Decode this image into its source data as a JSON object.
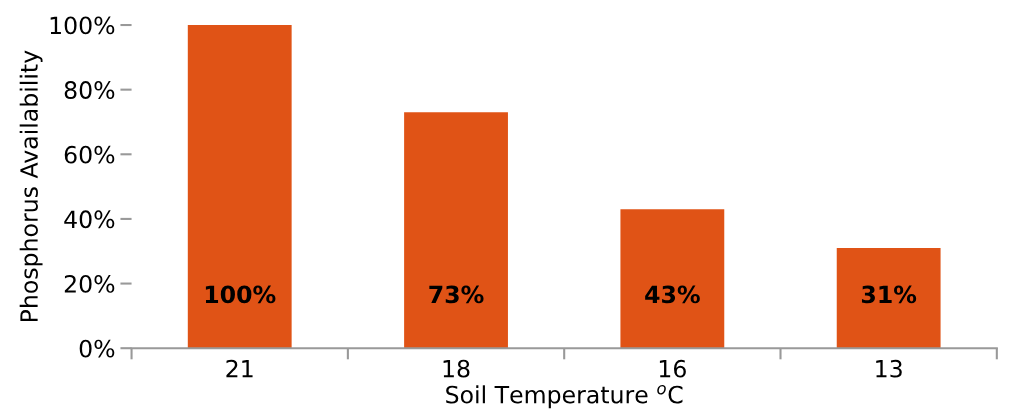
{
  "chart_data": {
    "type": "bar",
    "xlabel": "Soil Temperature $^{o}$C",
    "ylabel": "Phosphorus Availability",
    "categories": [
      "21",
      "18",
      "16",
      "13"
    ],
    "values": [
      100,
      73,
      43,
      31
    ],
    "color": "#e05316",
    "value_labels": [
      "100%",
      "73%",
      "43%",
      "31%"
    ],
    "ylim": [
      0,
      100
    ],
    "yticks": [
      {
        "value": 0,
        "label": "0%"
      },
      {
        "value": 20,
        "label": "20%"
      },
      {
        "value": 40,
        "label": "40%"
      },
      {
        "value": 60,
        "label": "60%"
      },
      {
        "value": 80,
        "label": "80%"
      },
      {
        "value": 100,
        "label": "100%"
      }
    ],
    "grid": false,
    "legend": false
  }
}
